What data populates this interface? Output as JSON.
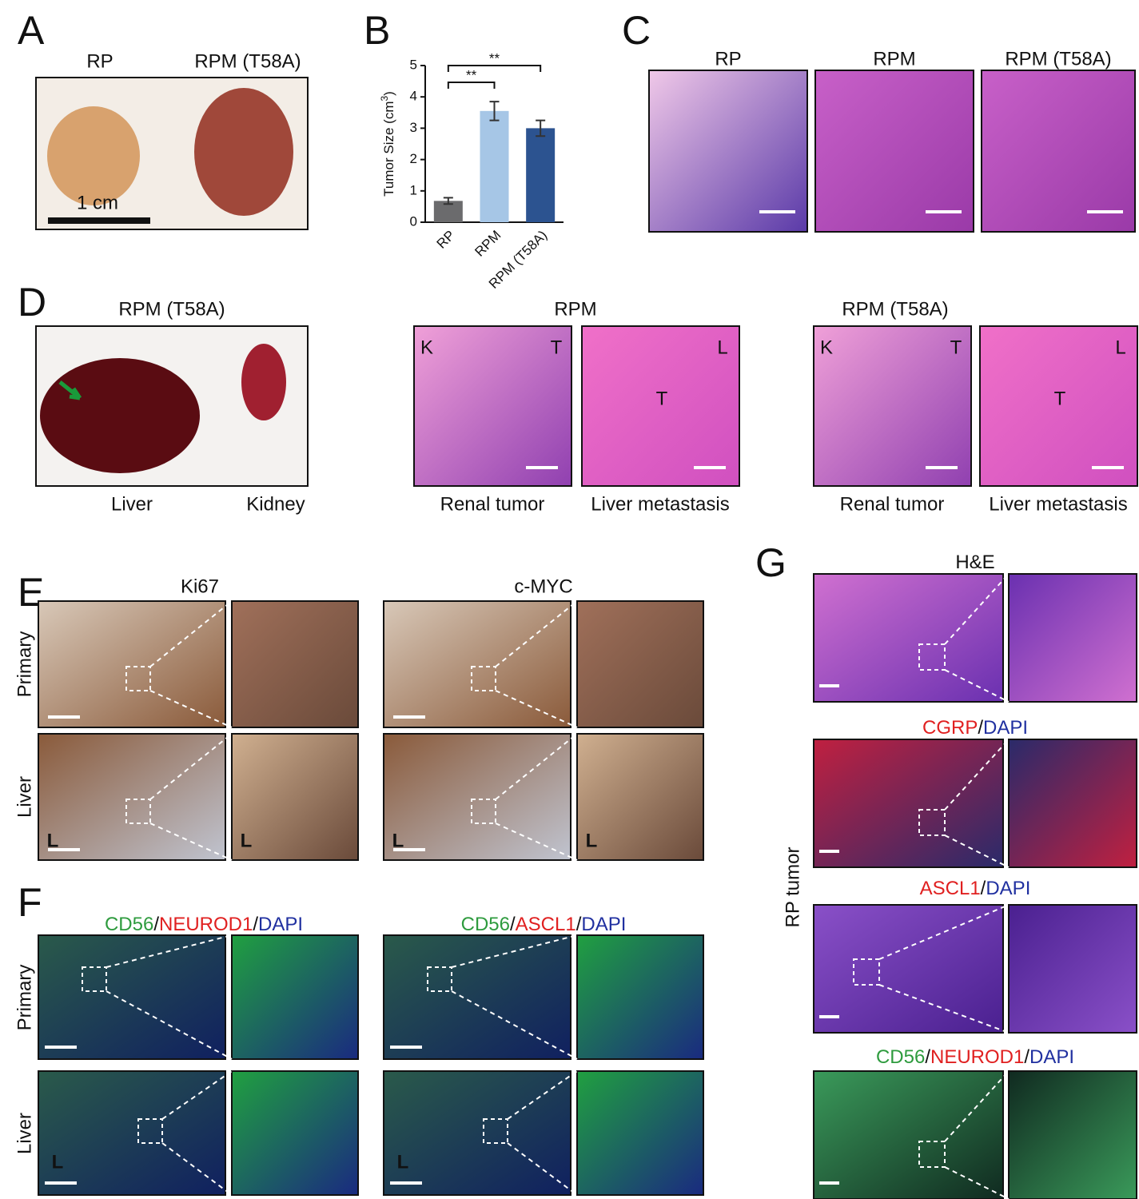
{
  "panels": {
    "A": {
      "label": "A",
      "groups": [
        "RP",
        "RPM (T58A)"
      ],
      "scale": "1 cm"
    },
    "B": {
      "label": "B"
    },
    "C": {
      "label": "C",
      "titles": [
        "RP",
        "RPM",
        "RPM (T58A)"
      ]
    },
    "D": {
      "label": "D",
      "groups": [
        {
          "title": "RPM (T58A)",
          "captions": [
            "Liver",
            "Kidney"
          ]
        },
        {
          "title": "RPM",
          "captions": [
            "Renal tumor",
            "Liver metastasis"
          ],
          "marks": [
            "K",
            "T",
            "T",
            "L"
          ]
        },
        {
          "title": "RPM (T58A)",
          "captions": [
            "Renal tumor",
            "Liver metastasis"
          ],
          "marks": [
            "K",
            "T",
            "T",
            "L"
          ]
        }
      ]
    },
    "E": {
      "label": "E",
      "stains": [
        "Ki67",
        "c-MYC"
      ],
      "rows": [
        "Primary",
        "Liver"
      ],
      "marks": [
        "L",
        "L",
        "L",
        "L"
      ]
    },
    "F": {
      "label": "F",
      "stains": [
        [
          {
            "text": "CD56",
            "color": "#2e9b3e"
          },
          {
            "text": "/",
            "color": "#111111"
          },
          {
            "text": "NEUROD1",
            "color": "#e02020"
          },
          {
            "text": "/",
            "color": "#111111"
          },
          {
            "text": "DAPI",
            "color": "#2030a0"
          }
        ],
        [
          {
            "text": "CD56",
            "color": "#2e9b3e"
          },
          {
            "text": "/",
            "color": "#111111"
          },
          {
            "text": "ASCL1",
            "color": "#e02020"
          },
          {
            "text": "/",
            "color": "#111111"
          },
          {
            "text": "DAPI",
            "color": "#2030a0"
          }
        ]
      ],
      "rows": [
        "Primary",
        "Liver"
      ],
      "marks": [
        "L",
        "L"
      ]
    },
    "G": {
      "label": "G",
      "side": "RP tumor",
      "stains": [
        [
          {
            "text": "H&E",
            "color": "#111111"
          }
        ],
        [
          {
            "text": "CGRP",
            "color": "#e02020"
          },
          {
            "text": "/",
            "color": "#111111"
          },
          {
            "text": "DAPI",
            "color": "#2030a0"
          }
        ],
        [
          {
            "text": "ASCL1",
            "color": "#e02020"
          },
          {
            "text": "/",
            "color": "#111111"
          },
          {
            "text": "DAPI",
            "color": "#2030a0"
          }
        ],
        [
          {
            "text": "CD56",
            "color": "#2e9b3e"
          },
          {
            "text": "/",
            "color": "#111111"
          },
          {
            "text": "NEUROD1",
            "color": "#e02020"
          },
          {
            "text": "/",
            "color": "#111111"
          },
          {
            "text": "DAPI",
            "color": "#2030a0"
          }
        ]
      ]
    }
  },
  "chart_data": {
    "type": "bar",
    "categories": [
      "RP",
      "RPM",
      "RPM (T58A)"
    ],
    "values": [
      0.68,
      3.55,
      3.0
    ],
    "errors": [
      0.1,
      0.3,
      0.25
    ],
    "colors": [
      "#6b6b6d",
      "#a6c6e6",
      "#2c5390"
    ],
    "y_label": "Tumor Size (cm",
    "y_label_sup": "3",
    "y_label_end": ")",
    "ylim": [
      0,
      5
    ],
    "yticks": [
      0,
      1,
      2,
      3,
      4,
      5
    ],
    "significance": [
      {
        "from": 0,
        "to": 1,
        "label": "**"
      },
      {
        "from": 0,
        "to": 2,
        "label": "**"
      }
    ]
  }
}
